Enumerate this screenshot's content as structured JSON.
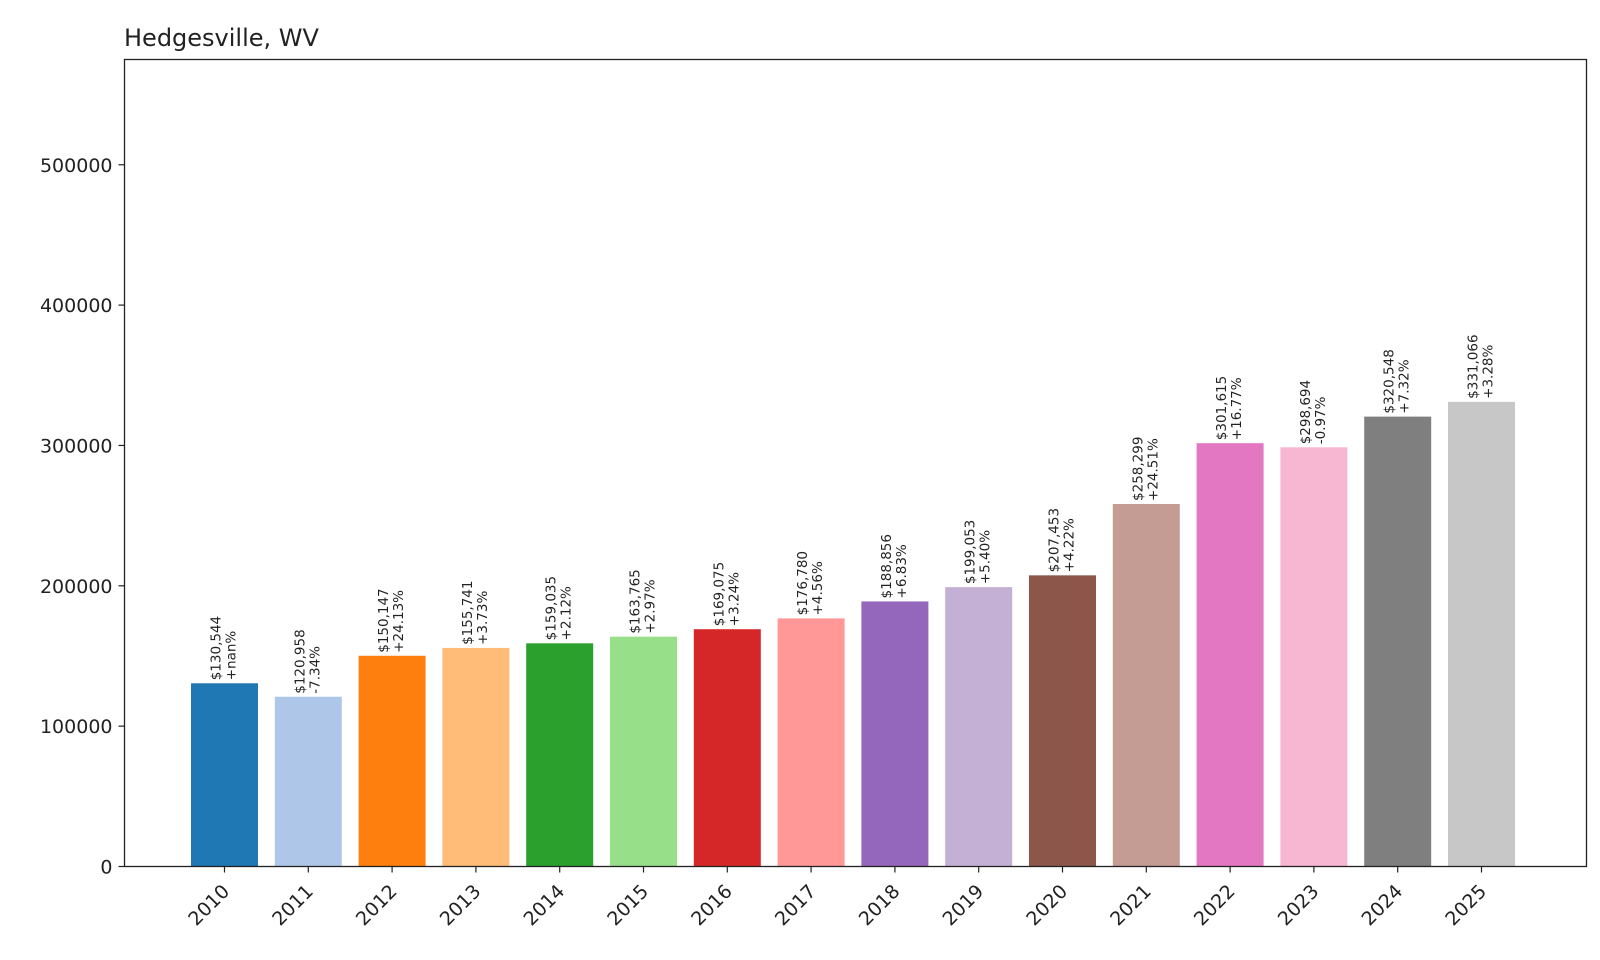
{
  "chart_data": {
    "type": "bar",
    "title": "Hedgesville, WV",
    "xlabel": "",
    "ylabel": "",
    "ylim": [
      0,
      575000
    ],
    "yticks": [
      0,
      100000,
      200000,
      300000,
      400000,
      500000
    ],
    "ytick_labels": [
      "0",
      "100000",
      "200000",
      "300000",
      "400000",
      "500000"
    ],
    "categories": [
      "2010",
      "2011",
      "2012",
      "2013",
      "2014",
      "2015",
      "2016",
      "2017",
      "2018",
      "2019",
      "2020",
      "2021",
      "2022",
      "2023",
      "2024",
      "2025"
    ],
    "values": [
      130544,
      120958,
      150147,
      155741,
      159035,
      163765,
      169075,
      176780,
      188856,
      199053,
      207453,
      258299,
      301615,
      298694,
      320548,
      331066
    ],
    "value_labels": [
      "$130,544",
      "$120,958",
      "$150,147",
      "$155,741",
      "$159,035",
      "$163,765",
      "$169,075",
      "$176,780",
      "$188,856",
      "$199,053",
      "$207,453",
      "$258,299",
      "$301,615",
      "$298,694",
      "$320,548",
      "$331,066"
    ],
    "change_labels": [
      "+nan%",
      "-7.34%",
      "+24.13%",
      "+3.73%",
      "+2.12%",
      "+2.97%",
      "+3.24%",
      "+4.56%",
      "+6.83%",
      "+5.40%",
      "+4.22%",
      "+24.51%",
      "+16.77%",
      "-0.97%",
      "+7.32%",
      "+3.28%"
    ],
    "colors": [
      "#1f77b4",
      "#aec7e8",
      "#ff7f0e",
      "#ffbb78",
      "#2ca02c",
      "#98df8a",
      "#d62728",
      "#ff9896",
      "#9467bd",
      "#c5b0d5",
      "#8c564b",
      "#c49c94",
      "#e377c2",
      "#f7b6d2",
      "#7f7f7f",
      "#c7c7c7"
    ],
    "grid": false,
    "legend": "none"
  }
}
